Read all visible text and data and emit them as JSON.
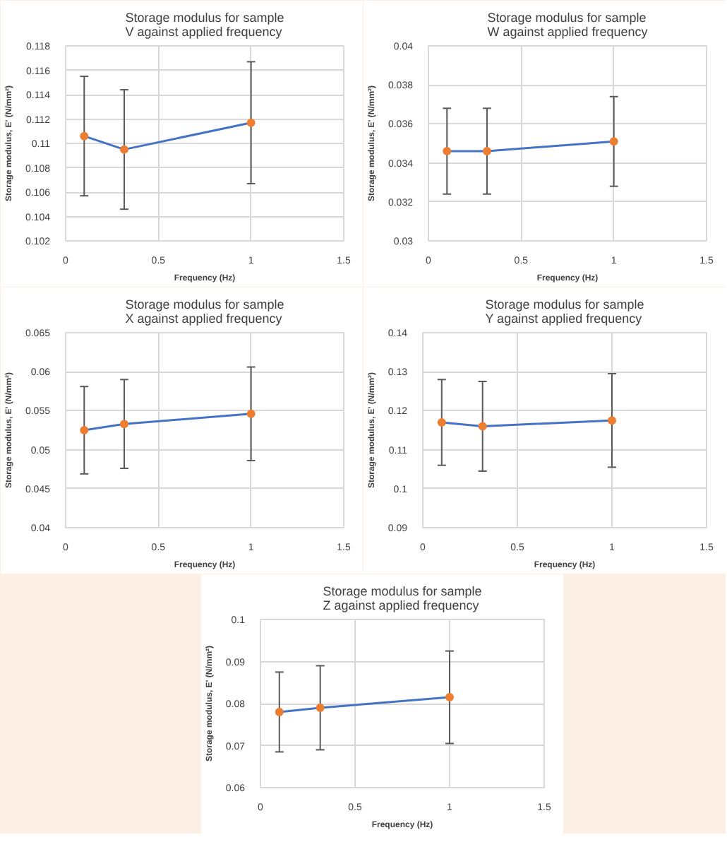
{
  "chart_data": [
    {
      "type": "line",
      "title": "Storage modulus for sample V against applied frequency",
      "xlabel": "Frequency (Hz)",
      "ylabel": "Storage modulus, E' (N/mm²)",
      "x": [
        0.1,
        0.316,
        1
      ],
      "xlim": [
        0,
        1.5
      ],
      "xticks": [
        0,
        0.5,
        1,
        1.5
      ],
      "ylim": [
        0.102,
        0.118
      ],
      "yticks": [
        0.102,
        0.104,
        0.106,
        0.108,
        0.11,
        0.112,
        0.114,
        0.116,
        0.118
      ],
      "grid": true,
      "marker": "circle",
      "series": [
        {
          "color": "#4472c4",
          "colors": [
            "#ed7d31",
            "#ed7d31",
            "#ed7d31"
          ],
          "values": [
            0.1106,
            0.1095,
            0.1117
          ],
          "errors": [
            0.0049,
            0.0049,
            0.005
          ]
        }
      ]
    },
    {
      "type": "line",
      "title": "Storage modulus for sample W against applied frequency",
      "xlabel": "Frequency (Hz)",
      "ylabel": "Storage modulus, E' (N/mm²)",
      "x": [
        0.1,
        0.316,
        1
      ],
      "xlim": [
        0,
        1.5
      ],
      "xticks": [
        0,
        0.5,
        1,
        1.5
      ],
      "ylim": [
        0.03,
        0.04
      ],
      "yticks": [
        0.03,
        0.032,
        0.034,
        0.036,
        0.038,
        0.04
      ],
      "grid": true,
      "marker": "circle",
      "series": [
        {
          "color": "#4472c4",
          "colors": [
            "#ed7d31",
            "#ed7d31",
            "#ed7d31"
          ],
          "values": [
            0.0346,
            0.0346,
            0.0351
          ],
          "errors": [
            0.0022,
            0.0022,
            0.0023
          ]
        }
      ]
    },
    {
      "type": "line",
      "title": "Storage modulus for sample X against applied frequency",
      "xlabel": "Frequency (Hz)",
      "ylabel": "Storage modulus, E' (N/mm²)",
      "x": [
        0.1,
        0.316,
        1
      ],
      "xlim": [
        0,
        1.5
      ],
      "xticks": [
        0,
        0.5,
        1,
        1.5
      ],
      "ylim": [
        0.04,
        0.065
      ],
      "yticks": [
        0.04,
        0.045,
        0.05,
        0.055,
        0.06,
        0.065
      ],
      "grid": true,
      "marker": "circle",
      "series": [
        {
          "color": "#4472c4",
          "colors": [
            "#ed7d31",
            "#ed7d31",
            "#ed7d31"
          ],
          "values": [
            0.0525,
            0.0533,
            0.0546
          ],
          "errors": [
            0.0056,
            0.0057,
            0.006
          ]
        }
      ]
    },
    {
      "type": "line",
      "title": "Storage modulus for sample Y against applied frequency",
      "xlabel": "Frequency (Hz)",
      "ylabel": "Storage modulus, E' (N/mm²)",
      "x": [
        0.1,
        0.316,
        1
      ],
      "xlim": [
        0,
        1.5
      ],
      "xticks": [
        0,
        0.5,
        1,
        1.5
      ],
      "ylim": [
        0.09,
        0.14
      ],
      "yticks": [
        0.09,
        0.1,
        0.11,
        0.12,
        0.13,
        0.14
      ],
      "grid": true,
      "marker": "circle",
      "series": [
        {
          "color": "#4472c4",
          "colors": [
            "#ed7d31",
            "#ed7d31",
            "#ed7d31"
          ],
          "values": [
            0.117,
            0.116,
            0.1175
          ],
          "errors": [
            0.011,
            0.0115,
            0.012
          ]
        }
      ]
    },
    {
      "type": "line",
      "title": "Storage modulus for sample Z against applied frequency",
      "xlabel": "Frequency (Hz)",
      "ylabel": "Storage modulus, E' (N/mm²)",
      "x": [
        0.1,
        0.316,
        1
      ],
      "xlim": [
        0,
        1.5
      ],
      "xticks": [
        0,
        0.5,
        1,
        1.5
      ],
      "ylim": [
        0.06,
        0.1
      ],
      "yticks": [
        0.06,
        0.07,
        0.08,
        0.09,
        0.1
      ],
      "grid": true,
      "marker": "circle",
      "series": [
        {
          "color": "#4472c4",
          "colors": [
            "#ed7d31",
            "#ed7d31",
            "#ed7d31"
          ],
          "values": [
            0.078,
            0.079,
            0.0815
          ],
          "errors": [
            0.0095,
            0.01,
            0.011
          ]
        }
      ]
    }
  ]
}
